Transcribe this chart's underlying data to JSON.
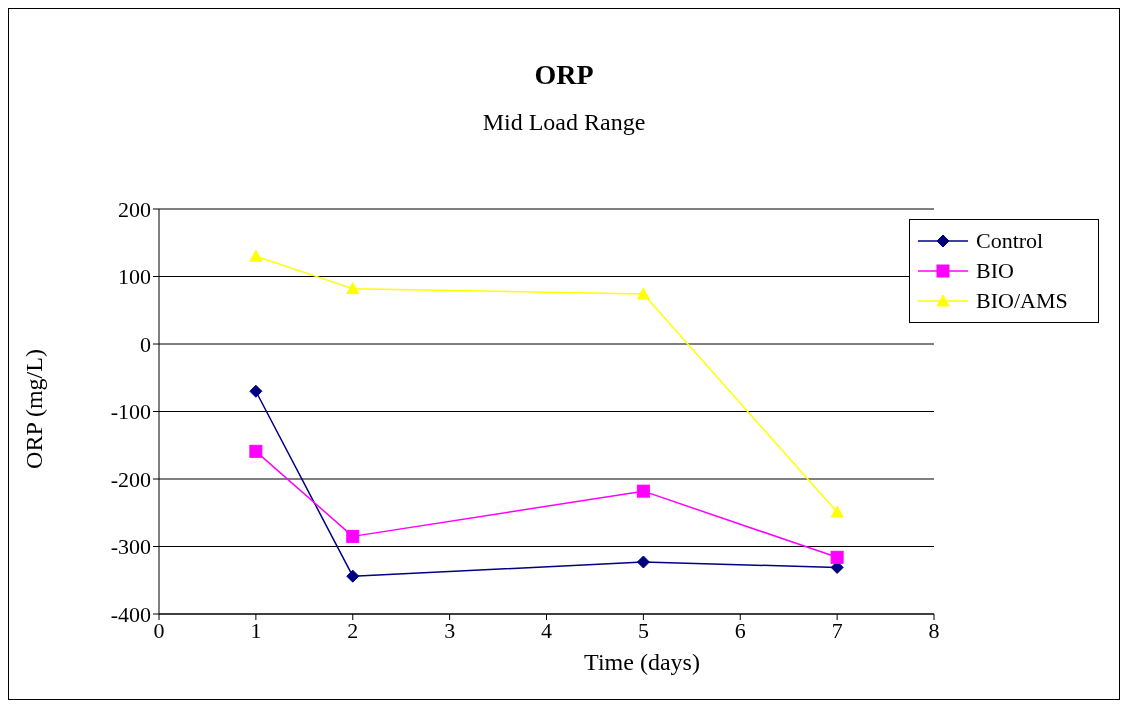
{
  "chart_data": {
    "type": "line",
    "title": "ORP",
    "subtitle": "Mid Load Range",
    "xlabel": "Time (days)",
    "ylabel": "ORP (mg/L)",
    "x": [
      1,
      2,
      5,
      7
    ],
    "series": [
      {
        "name": "Control",
        "color": "#000080",
        "values": [
          -70,
          -344,
          -323,
          -331
        ],
        "marker": "diamond"
      },
      {
        "name": "BIO",
        "color": "#ff00ff",
        "values": [
          -159,
          -285,
          -218,
          -316
        ],
        "marker": "square"
      },
      {
        "name": "BIO/AMS",
        "color": "#ffff00",
        "values": [
          130,
          82,
          74,
          -249
        ],
        "marker": "triangle"
      }
    ],
    "xlim": [
      0,
      8
    ],
    "xticks": [
      0,
      1,
      2,
      3,
      4,
      5,
      6,
      7,
      8
    ],
    "ylim": [
      -400,
      200
    ],
    "yticks": [
      -400,
      -300,
      -200,
      -100,
      0,
      100,
      200
    ],
    "grid": "y",
    "legend": "top right",
    "line_style": "solid"
  }
}
